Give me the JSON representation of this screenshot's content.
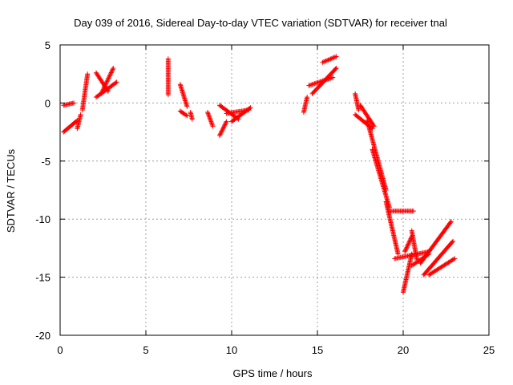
{
  "chart_data": {
    "type": "scatter",
    "title": "Day 039 of 2016, Sidereal Day-to-day VTEC variation (SDTVAR) for receiver tnal",
    "xlabel": "GPS time / hours",
    "ylabel": "SDTVAR / TECUs",
    "xlim": [
      0,
      25
    ],
    "ylim": [
      -20,
      5
    ],
    "xticks": [
      0,
      5,
      10,
      15,
      20,
      25
    ],
    "yticks": [
      -20,
      -15,
      -10,
      -5,
      0,
      5
    ],
    "xtick_labels": [
      "0",
      "5",
      "10",
      "15",
      "20",
      "25"
    ],
    "ytick_labels": [
      "-20",
      "-15",
      "-10",
      "-5",
      "0",
      "5"
    ],
    "grid": true,
    "marker": "+",
    "color": "#ff0000",
    "segments": [
      {
        "name": "arc-a1",
        "x": [
          0.2,
          0.8
        ],
        "y": [
          -0.2,
          0.0
        ]
      },
      {
        "name": "arc-a2",
        "x": [
          0.2,
          1.0
        ],
        "y": [
          -2.5,
          -1.5
        ]
      },
      {
        "name": "arc-a3",
        "x": [
          1.0,
          1.2
        ],
        "y": [
          -2.2,
          -1.0
        ]
      },
      {
        "name": "arc-a4",
        "x": [
          1.3,
          1.6
        ],
        "y": [
          -0.6,
          2.5
        ]
      },
      {
        "name": "arc-b1",
        "x": [
          2.1,
          2.8
        ],
        "y": [
          2.6,
          1.0
        ]
      },
      {
        "name": "arc-b2",
        "x": [
          2.1,
          3.3
        ],
        "y": [
          0.5,
          1.8
        ]
      },
      {
        "name": "arc-b3",
        "x": [
          2.4,
          3.1
        ],
        "y": [
          0.8,
          3.0
        ]
      },
      {
        "name": "arc-c1",
        "x": [
          6.3,
          6.3
        ],
        "y": [
          3.8,
          0.7
        ]
      },
      {
        "name": "arc-c2",
        "x": [
          7.0,
          7.4
        ],
        "y": [
          1.6,
          -0.3
        ]
      },
      {
        "name": "arc-c3",
        "x": [
          7.0,
          7.4
        ],
        "y": [
          -0.7,
          -1.1
        ]
      },
      {
        "name": "arc-c4",
        "x": [
          7.6,
          7.7
        ],
        "y": [
          -0.8,
          -1.4
        ]
      },
      {
        "name": "arc-d1",
        "x": [
          8.6,
          8.9
        ],
        "y": [
          -0.8,
          -2.0
        ]
      },
      {
        "name": "arc-d2",
        "x": [
          9.3,
          9.7
        ],
        "y": [
          -2.8,
          -1.6
        ]
      },
      {
        "name": "arc-d3",
        "x": [
          9.3,
          10.4
        ],
        "y": [
          -0.2,
          -1.4
        ]
      },
      {
        "name": "arc-d4",
        "x": [
          10.0,
          11.1
        ],
        "y": [
          -1.6,
          -0.4
        ]
      },
      {
        "name": "arc-d5",
        "x": [
          9.7,
          11.0
        ],
        "y": [
          -0.9,
          -0.6
        ]
      },
      {
        "name": "arc-e1",
        "x": [
          14.2,
          14.4
        ],
        "y": [
          -0.8,
          0.5
        ]
      },
      {
        "name": "arc-e2",
        "x": [
          14.5,
          15.9
        ],
        "y": [
          1.5,
          2.2
        ]
      },
      {
        "name": "arc-e3",
        "x": [
          14.7,
          16.1
        ],
        "y": [
          0.8,
          3.0
        ]
      },
      {
        "name": "arc-e4",
        "x": [
          15.3,
          16.1
        ],
        "y": [
          3.5,
          4.0
        ]
      },
      {
        "name": "arc-f1",
        "x": [
          17.2,
          17.4
        ],
        "y": [
          0.8,
          -0.6
        ]
      },
      {
        "name": "arc-f2",
        "x": [
          17.2,
          18.2
        ],
        "y": [
          -1.0,
          -2.2
        ]
      },
      {
        "name": "arc-f3",
        "x": [
          17.5,
          18.3
        ],
        "y": [
          -0.2,
          -2.0
        ]
      },
      {
        "name": "arc-f4",
        "x": [
          17.9,
          19.0
        ],
        "y": [
          -1.5,
          -7.5
        ]
      },
      {
        "name": "arc-f5",
        "x": [
          18.2,
          19.2
        ],
        "y": [
          -4.0,
          -9.0
        ]
      },
      {
        "name": "arc-f6",
        "x": [
          19.0,
          19.7
        ],
        "y": [
          -8.5,
          -13.0
        ]
      },
      {
        "name": "arc-f7",
        "x": [
          19.2,
          20.6
        ],
        "y": [
          -9.3,
          -9.3
        ]
      },
      {
        "name": "arc-f8",
        "x": [
          19.5,
          21.5
        ],
        "y": [
          -13.4,
          -12.8
        ]
      },
      {
        "name": "arc-g1",
        "x": [
          20.0,
          20.5
        ],
        "y": [
          -16.3,
          -13.0
        ]
      },
      {
        "name": "arc-g2",
        "x": [
          20.1,
          20.5
        ],
        "y": [
          -12.8,
          -11.5
        ]
      },
      {
        "name": "arc-g3",
        "x": [
          20.5,
          20.8
        ],
        "y": [
          -11.0,
          -13.5
        ]
      },
      {
        "name": "arc-g4",
        "x": [
          21.0,
          22.8
        ],
        "y": [
          -13.8,
          -10.2
        ]
      },
      {
        "name": "arc-g5",
        "x": [
          21.2,
          22.9
        ],
        "y": [
          -14.8,
          -11.9
        ]
      },
      {
        "name": "arc-g6",
        "x": [
          21.5,
          23.0
        ],
        "y": [
          -14.8,
          -13.4
        ]
      },
      {
        "name": "arc-g7",
        "x": [
          20.5,
          21.5
        ],
        "y": [
          -14.0,
          -13.0
        ]
      }
    ]
  }
}
